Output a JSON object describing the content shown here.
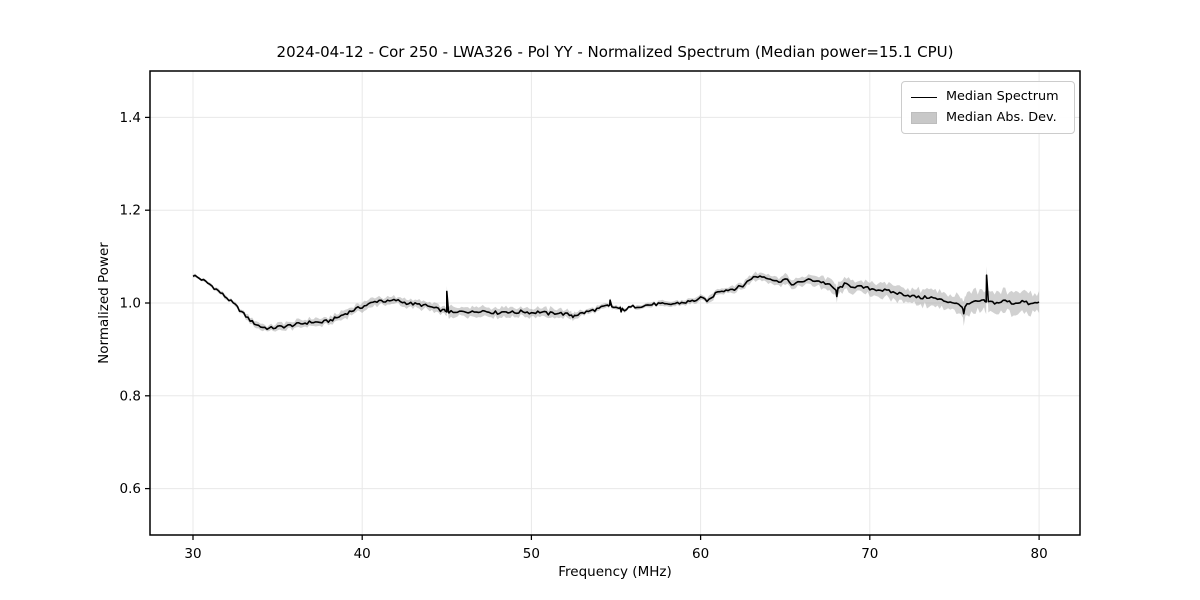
{
  "chart_data": {
    "type": "line",
    "title": "2024-04-12 - Cor 250 - LWA326 - Pol YY - Normalized Spectrum (Median power=15.1 CPU)",
    "xlabel": "Frequency (MHz)",
    "ylabel": "Normalized Power",
    "xlim": [
      27.46,
      82.42
    ],
    "ylim": [
      0.5,
      1.5
    ],
    "xticks": [
      {
        "v": 30,
        "label": "30"
      },
      {
        "v": 40,
        "label": "40"
      },
      {
        "v": 50,
        "label": "50"
      },
      {
        "v": 60,
        "label": "60"
      },
      {
        "v": 70,
        "label": "70"
      },
      {
        "v": 80,
        "label": "80"
      }
    ],
    "yticks": [
      {
        "v": 0.6,
        "label": "0.6"
      },
      {
        "v": 0.8,
        "label": "0.8"
      },
      {
        "v": 1.0,
        "label": "1.0"
      },
      {
        "v": 1.2,
        "label": "1.2"
      },
      {
        "v": 1.4,
        "label": "1.4"
      }
    ],
    "grid": true,
    "legend": {
      "position": "upper right",
      "entries": [
        {
          "label": "Median Spectrum",
          "type": "line",
          "color": "#000000"
        },
        {
          "label": "Median Abs. Dev.",
          "type": "patch",
          "color": "#c8c8c8"
        }
      ]
    },
    "series": {
      "name": "Median Spectrum",
      "x_start": 30.0,
      "x_step": 0.5,
      "median": [
        1.06,
        1.051,
        1.04,
        1.026,
        1.011,
        0.995,
        0.976,
        0.959,
        0.949,
        0.945,
        0.948,
        0.95,
        0.953,
        0.956,
        0.959,
        0.958,
        0.961,
        0.968,
        0.977,
        0.985,
        0.992,
        0.999,
        1.006,
        1.003,
        1.006,
        1.001,
        0.998,
        0.996,
        0.992,
        0.986,
        0.982,
        0.978,
        0.983,
        0.98,
        0.984,
        0.981,
        0.979,
        0.982,
        0.979,
        0.982,
        0.979,
        0.981,
        0.977,
        0.979,
        0.976,
        0.973,
        0.978,
        0.983,
        0.988,
        0.994,
        0.99,
        0.986,
        0.992,
        0.994,
        0.996,
        0.998,
        0.996,
        0.999,
        1.001,
        1.004,
        1.01,
        1.005,
        1.026,
        1.028,
        1.031,
        1.037,
        1.054,
        1.058,
        1.055,
        1.046,
        1.051,
        1.039,
        1.047,
        1.05,
        1.047,
        1.041,
        1.028,
        1.04,
        1.036,
        1.034,
        1.031,
        1.029,
        1.026,
        1.022,
        1.019,
        1.015,
        1.011,
        1.013,
        1.008,
        1.004,
        1.001,
        0.99,
        1.0,
        1.004,
        1.003,
        1.0,
        1.005,
        0.999,
        1.004,
        0.997,
        1.002
      ],
      "mad": [
        0.003,
        0.003,
        0.003,
        0.004,
        0.004,
        0.004,
        0.005,
        0.006,
        0.007,
        0.007,
        0.007,
        0.008,
        0.008,
        0.008,
        0.008,
        0.008,
        0.008,
        0.009,
        0.009,
        0.009,
        0.009,
        0.008,
        0.008,
        0.008,
        0.008,
        0.008,
        0.008,
        0.008,
        0.009,
        0.009,
        0.01,
        0.01,
        0.01,
        0.01,
        0.01,
        0.01,
        0.01,
        0.01,
        0.01,
        0.01,
        0.01,
        0.01,
        0.01,
        0.009,
        0.008,
        0.007,
        0.006,
        0.005,
        0.005,
        0.005,
        0.004,
        0.004,
        0.004,
        0.004,
        0.004,
        0.005,
        0.005,
        0.005,
        0.005,
        0.006,
        0.006,
        0.006,
        0.007,
        0.007,
        0.008,
        0.008,
        0.008,
        0.009,
        0.009,
        0.009,
        0.01,
        0.01,
        0.01,
        0.01,
        0.011,
        0.012,
        0.012,
        0.012,
        0.013,
        0.013,
        0.014,
        0.014,
        0.015,
        0.015,
        0.016,
        0.016,
        0.017,
        0.017,
        0.018,
        0.018,
        0.019,
        0.02,
        0.021,
        0.021,
        0.021,
        0.021,
        0.021,
        0.021,
        0.021,
        0.021,
        0.021
      ],
      "spikes": [
        {
          "x": 45.0,
          "y": 1.025
        },
        {
          "x": 54.65,
          "y": 1.006
        },
        {
          "x": 76.9,
          "y": 1.06
        }
      ],
      "dips": [
        {
          "x": 52.45,
          "y": 0.969
        },
        {
          "x": 55.3,
          "y": 0.981
        },
        {
          "x": 68.05,
          "y": 1.014
        },
        {
          "x": 75.55,
          "y": 0.977
        }
      ]
    },
    "style": {
      "line_color": "#000000",
      "band_color": "#999999",
      "band_opacity": 0.45,
      "grid_color": "#e8e8e8",
      "spine_color": "#000000",
      "jitter": 0.0035
    }
  }
}
